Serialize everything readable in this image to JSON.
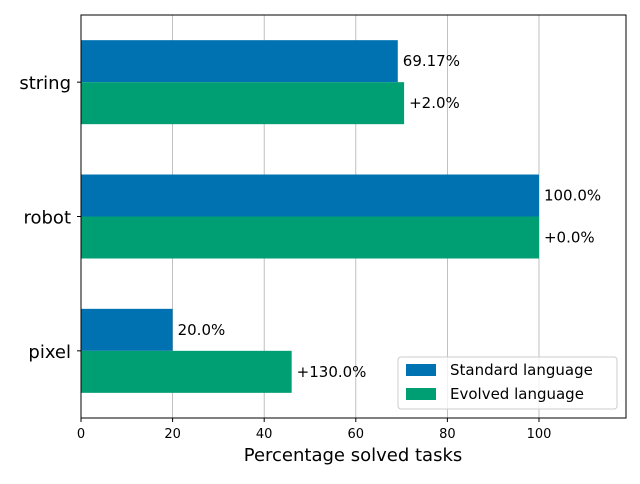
{
  "chart_data": {
    "type": "bar",
    "orientation": "horizontal",
    "categories": [
      "pixel",
      "robot",
      "string"
    ],
    "series": [
      {
        "name": "Standard language",
        "color": "#0072b2",
        "values": [
          20.0,
          100.0,
          69.17
        ],
        "labels": [
          "20.0%",
          "100.0%",
          "69.17%"
        ]
      },
      {
        "name": "Evolved language",
        "color": "#009e73",
        "values": [
          46.0,
          100.0,
          70.55
        ],
        "labels": [
          "+130.0%",
          "+0.0%",
          "+2.0%"
        ]
      }
    ],
    "xlabel": "Percentage solved tasks",
    "ylabel": "",
    "title": "",
    "xlim": [
      0,
      119
    ],
    "xticks": [
      0,
      20,
      40,
      60,
      80,
      100
    ],
    "xtick_labels": [
      "0",
      "20",
      "40",
      "60",
      "80",
      "100"
    ],
    "grid": "vertical",
    "legend": "lower-right"
  }
}
